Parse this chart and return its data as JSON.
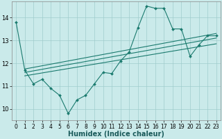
{
  "xlabel": "Humidex (Indice chaleur)",
  "line_color": "#1a7a6e",
  "bg_color": "#caeaea",
  "grid_color": "#a0cccc",
  "main_x": [
    0,
    1,
    2,
    3,
    4,
    5,
    6,
    7,
    8,
    9,
    10,
    11,
    12,
    13,
    14,
    15,
    16,
    17,
    18,
    19,
    20,
    21,
    22,
    23
  ],
  "main_y": [
    13.8,
    11.7,
    11.1,
    11.3,
    10.9,
    10.6,
    9.8,
    10.4,
    10.6,
    11.1,
    11.6,
    11.55,
    12.1,
    12.5,
    13.55,
    14.5,
    14.4,
    14.4,
    13.5,
    13.5,
    12.3,
    12.8,
    13.2,
    13.2
  ],
  "trend_lines": [
    [
      [
        1,
        23
      ],
      [
        11.75,
        13.3
      ]
    ],
    [
      [
        1,
        23
      ],
      [
        11.6,
        13.1
      ]
    ],
    [
      [
        1,
        23
      ],
      [
        11.45,
        12.85
      ]
    ]
  ],
  "ylim": [
    9.5,
    14.7
  ],
  "yticks": [
    10,
    11,
    12,
    13,
    14
  ],
  "xticks": [
    0,
    1,
    2,
    3,
    4,
    5,
    6,
    7,
    8,
    9,
    10,
    11,
    12,
    13,
    14,
    15,
    16,
    17,
    18,
    19,
    20,
    21,
    22,
    23
  ],
  "xlabel_fontsize": 7,
  "tick_fontsize": 5.5
}
